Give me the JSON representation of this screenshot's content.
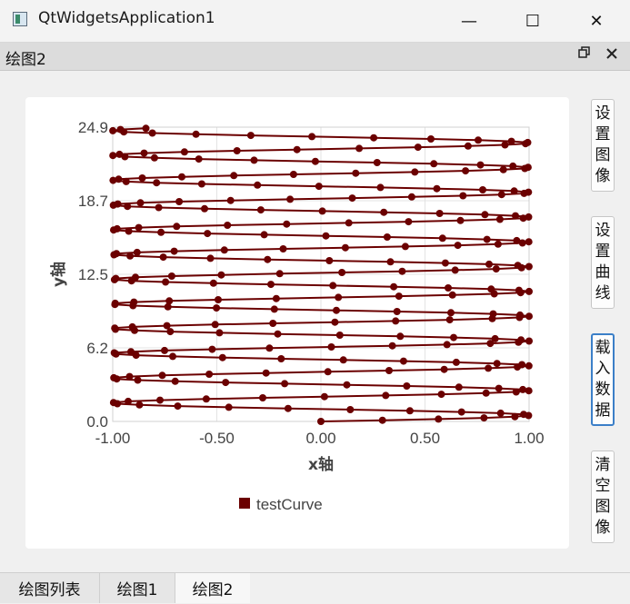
{
  "window": {
    "title": "QtWidgetsApplication1",
    "minimize": "—",
    "maximize": "☐",
    "close": "✕"
  },
  "dock": {
    "title": "绘图2",
    "float_icon": "restore-icon",
    "close_icon": "close-icon"
  },
  "sidebar": {
    "set_image": "设置图像",
    "set_curve": "设置曲线",
    "load_data": "载入数据",
    "clear_image": "清空图像"
  },
  "tabs": [
    {
      "label": "绘图列表",
      "active": false
    },
    {
      "label": "绘图1",
      "active": false
    },
    {
      "label": "绘图2",
      "active": true
    }
  ],
  "colors": {
    "series": "#6b0000",
    "accent": "#3b7fc8"
  },
  "chart_data": {
    "type": "line",
    "xlabel": "x轴",
    "ylabel": "y轴",
    "xlim": [
      -1.0,
      1.0
    ],
    "ylim": [
      0.0,
      24.9
    ],
    "xticks": [
      "-1.00",
      "-0.50",
      "0.00",
      "0.50",
      "1.00"
    ],
    "yticks": [
      "0.0",
      "6.2",
      "12.5",
      "18.7",
      "24.9"
    ],
    "legend": "bottom-center",
    "grid": true,
    "series": [
      {
        "name": "testCurve",
        "description": "x = sin(t), y = t/3; t ≈ 0 to 74.4, points every ~0.3"
      }
    ]
  }
}
